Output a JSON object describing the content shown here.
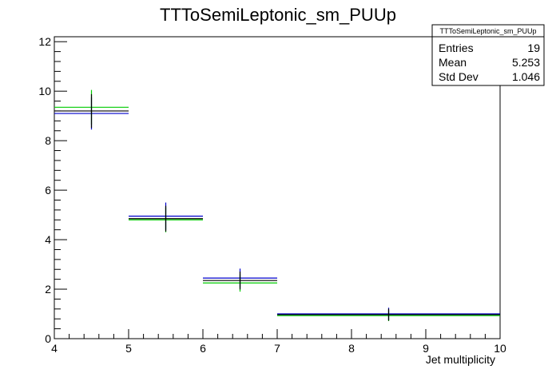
{
  "chart_data": {
    "type": "histogram",
    "title": "TTToSemiLeptonic_sm_PUUp",
    "xlabel": "Jet multiplicity",
    "ylabel": "",
    "xlim": [
      4,
      10
    ],
    "ylim": [
      0,
      12.2
    ],
    "x_ticks": [
      "4",
      "5",
      "6",
      "7",
      "8",
      "9",
      "10"
    ],
    "y_ticks": [
      "0",
      "2",
      "4",
      "6",
      "8",
      "10",
      "12"
    ],
    "grid": false,
    "legend": "none",
    "series": [
      {
        "color": "#0000cc",
        "bins": [
          {
            "lo": 4,
            "hi": 5,
            "y": 9.1,
            "err": 0.65
          },
          {
            "lo": 5,
            "hi": 6,
            "y": 4.95,
            "err": 0.55
          },
          {
            "lo": 6,
            "hi": 7,
            "y": 2.45,
            "err": 0.38
          },
          {
            "lo": 7,
            "hi": 10,
            "y": 1.0,
            "err": 0.25
          }
        ]
      },
      {
        "color": "#00cc00",
        "bins": [
          {
            "lo": 4,
            "hi": 5,
            "y": 9.35,
            "err": 0.7
          },
          {
            "lo": 5,
            "hi": 6,
            "y": 4.8,
            "err": 0.5
          },
          {
            "lo": 6,
            "hi": 7,
            "y": 2.25,
            "err": 0.35
          },
          {
            "lo": 7,
            "hi": 10,
            "y": 0.93,
            "err": 0.22
          }
        ]
      },
      {
        "color": "#000000",
        "bins": [
          {
            "lo": 4,
            "hi": 5,
            "y": 9.2,
            "err": 0.68
          },
          {
            "lo": 5,
            "hi": 6,
            "y": 4.85,
            "err": 0.52
          },
          {
            "lo": 6,
            "hi": 7,
            "y": 2.35,
            "err": 0.36
          },
          {
            "lo": 7,
            "hi": 10,
            "y": 0.97,
            "err": 0.24
          }
        ]
      }
    ]
  },
  "stats_box": {
    "title": "TTToSemiLeptonic_sm_PUUp",
    "rows": [
      {
        "label": "Entries",
        "value": "19"
      },
      {
        "label": "Mean",
        "value": "5.253"
      },
      {
        "label": "Std Dev",
        "value": "1.046"
      }
    ]
  }
}
